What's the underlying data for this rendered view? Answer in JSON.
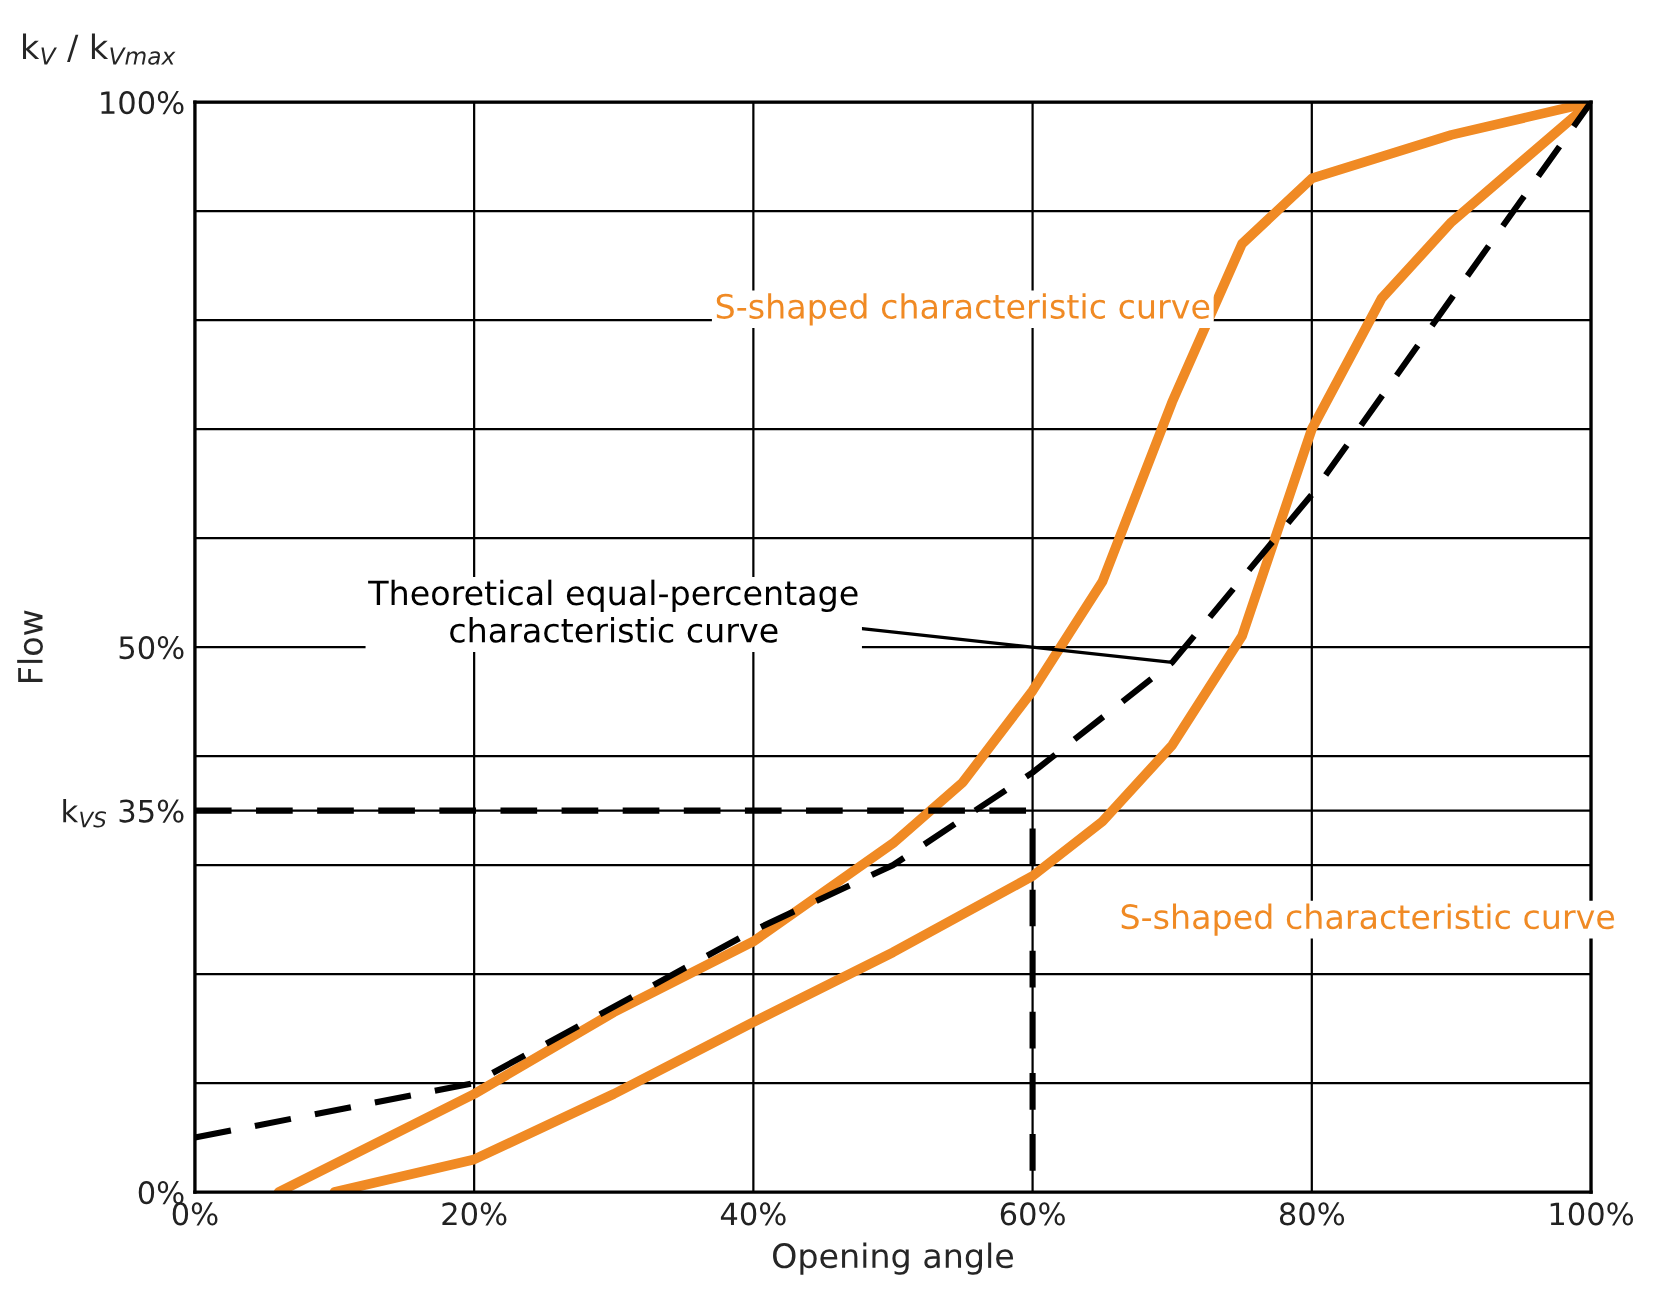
{
  "chart_data": {
    "type": "line",
    "xlabel": "Opening angle",
    "ylabel": "Flow",
    "xlim": [
      0,
      100
    ],
    "ylim": [
      0,
      100
    ],
    "xticks": [
      {
        "value": 0,
        "label": "0%"
      },
      {
        "value": 20,
        "label": "20%"
      },
      {
        "value": 40,
        "label": "40%"
      },
      {
        "value": 60,
        "label": "60%"
      },
      {
        "value": 80,
        "label": "80%"
      },
      {
        "value": 100,
        "label": "100%"
      }
    ],
    "yticks": [
      {
        "value": 0,
        "label": "0%"
      },
      {
        "value": 10,
        "label": null
      },
      {
        "value": 20,
        "label": null
      },
      {
        "value": 30,
        "label": null
      },
      {
        "value": 35,
        "label": "k$_{VS}$ 35%"
      },
      {
        "value": 40,
        "label": null
      },
      {
        "value": 50,
        "label": "50%"
      },
      {
        "value": 60,
        "label": null
      },
      {
        "value": 70,
        "label": null
      },
      {
        "value": 80,
        "label": null
      },
      {
        "value": 90,
        "label": null
      },
      {
        "value": 100,
        "label": "100%"
      }
    ],
    "grid": true,
    "marker": "none",
    "series": [
      {
        "name": "S-shaped characteristic curve",
        "color": "#f08a24",
        "line_style": "solid",
        "x": [
          6,
          20,
          30,
          40,
          50,
          55,
          60,
          65,
          70,
          75,
          80,
          90,
          100
        ],
        "values": [
          0,
          9,
          16.5,
          23,
          32,
          37.6,
          46,
          56,
          72.5,
          87,
          93,
          97,
          100
        ]
      },
      {
        "name": "S-shaped characteristic curve",
        "color": "#f08a24",
        "line_style": "solid",
        "x": [
          10,
          20,
          30,
          40,
          50,
          60,
          65,
          70,
          75,
          80,
          85,
          90,
          100
        ],
        "values": [
          0,
          3,
          9,
          15.6,
          22,
          29,
          34,
          41,
          51,
          70,
          82,
          89,
          100
        ]
      },
      {
        "name": "Theoretical equal-percentage\ncharacteristic curve",
        "color": "#000000",
        "line_style": "dashed",
        "x": [
          0,
          20,
          40,
          50,
          60,
          70,
          80,
          90,
          100
        ],
        "values": [
          5,
          10,
          24,
          30,
          38.5,
          48.6,
          64,
          82,
          100
        ]
      },
      {
        "color": "#000000",
        "line_style": "dashed",
        "x": [
          0,
          60,
          60
        ],
        "values": [
          35,
          35,
          0
        ]
      }
    ],
    "annotations": [
      "k$_{V}$ / k$_{Vmax}$"
    ]
  }
}
